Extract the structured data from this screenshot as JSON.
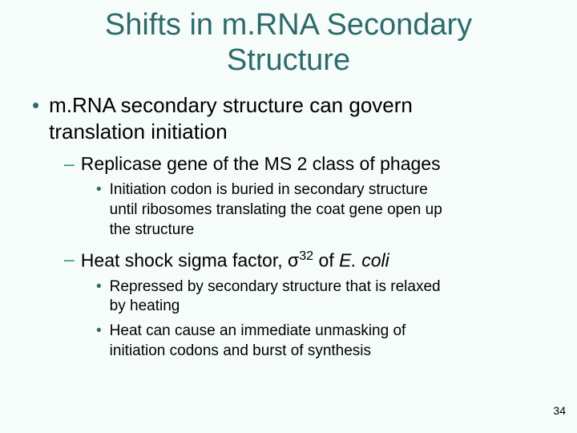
{
  "colors": {
    "background": "#f5fcfa",
    "title": "#2d6b6b",
    "bullet1": "#2d6b6b",
    "dash2": "#2d8d8d",
    "bullet3": "#2d6b6b",
    "body_text": "#000000",
    "page_num": "#000000"
  },
  "typography": {
    "title_fontsize": 38,
    "level1_fontsize": 26,
    "level2_fontsize": 23,
    "level3_fontsize": 19,
    "page_num_fontsize": 14,
    "font_family": "Arial"
  },
  "title_line1": "Shifts in m.RNA Secondary",
  "title_line2": "Structure",
  "l1_text_a": "m.RNA secondary structure can govern",
  "l1_text_b": "translation initiation",
  "l2a_text": "Replicase gene of the MS 2 class of phages",
  "l3a_text_a": "Initiation codon is buried in secondary structure",
  "l3a_text_b": "until ribosomes translating the coat gene open up",
  "l3a_text_c": "the structure",
  "l2b_prefix": "Heat shock sigma factor, ",
  "l2b_sigma": "σ",
  "l2b_super": "32",
  "l2b_of": " of ",
  "l2b_species": "E. coli",
  "l3b_text_a": "Repressed by secondary structure that is relaxed",
  "l3b_text_b": "by heating",
  "l3c_text_a": "Heat can cause an immediate unmasking of",
  "l3c_text_b": "initiation codons and burst of synthesis",
  "page_number": "34",
  "bullet_glyph": "•",
  "dash_glyph": "–"
}
